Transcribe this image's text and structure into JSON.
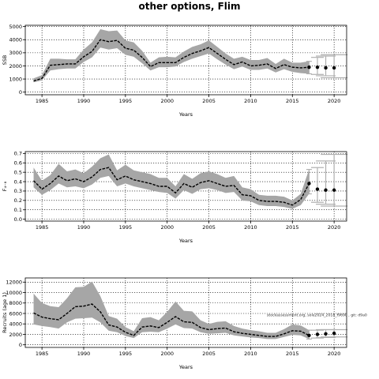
{
  "title": "other options, Flim",
  "watermark": "stockassessment.org, sole2024_2018_f9690 , git: d9a0",
  "colors": {
    "band": "#a6a6a6",
    "line": "#000000",
    "grid": "#000000",
    "forecast": "#b0b0b0"
  },
  "chart_data": [
    {
      "type": "line",
      "ylabel": "SSB",
      "xlabel": "Years",
      "xlim": [
        1983,
        2021.5
      ],
      "ylim": [
        -200,
        5100
      ],
      "xticks": [
        1985,
        1990,
        1995,
        2000,
        2005,
        2010,
        2015,
        2020
      ],
      "yticks": [
        0,
        1000,
        2000,
        3000,
        4000,
        5000
      ],
      "grid": true,
      "series": [
        {
          "x": [
            1984,
            1985,
            1986,
            1987,
            1988,
            1989,
            1990,
            1991,
            1992,
            1993,
            1994,
            1995,
            1996,
            1997,
            1998,
            1999,
            2000,
            2001,
            2002,
            2003,
            2004,
            2005,
            2006,
            2007,
            2008,
            2009,
            2010,
            2011,
            2012,
            2013,
            2014,
            2015,
            2016,
            2017
          ],
          "y": [
            850,
            1050,
            2050,
            2100,
            2150,
            2150,
            2700,
            3100,
            4000,
            3850,
            3950,
            3350,
            3200,
            2650,
            1950,
            2250,
            2250,
            2250,
            2650,
            2950,
            3150,
            3400,
            2950,
            2500,
            2100,
            2300,
            2000,
            2050,
            2150,
            1800,
            2100,
            1900,
            1850,
            1900
          ],
          "lower": [
            750,
            900,
            1650,
            1750,
            1800,
            1800,
            2300,
            2650,
            3400,
            3250,
            3350,
            2850,
            2700,
            2200,
            1650,
            1900,
            1900,
            1950,
            2300,
            2550,
            2750,
            2950,
            2500,
            2100,
            1750,
            1950,
            1700,
            1700,
            1800,
            1500,
            1750,
            1550,
            1450,
            1400
          ],
          "upper": [
            1050,
            1300,
            2550,
            2550,
            2500,
            2500,
            3250,
            3800,
            4800,
            4650,
            4700,
            3950,
            3800,
            3150,
            2250,
            2650,
            2700,
            2650,
            3100,
            3450,
            3650,
            3950,
            3450,
            2950,
            2550,
            2700,
            2450,
            2450,
            2600,
            2150,
            2550,
            2250,
            2250,
            2350
          ]
        },
        {
          "name": "forecast",
          "x": [
            2017,
            2018,
            2019,
            2020
          ],
          "y": [
            1900,
            1900,
            1850,
            1850
          ],
          "lower": [
            1400,
            1350,
            1250,
            1100
          ],
          "upper": [
            2350,
            2650,
            2750,
            2850
          ]
        }
      ]
    },
    {
      "type": "line",
      "ylabel": "F₄₋₈",
      "xlabel": "Years",
      "xlim": [
        1983,
        2021.5
      ],
      "ylim": [
        -0.02,
        0.72
      ],
      "xticks": [
        1985,
        1990,
        1995,
        2000,
        2005,
        2010,
        2015,
        2020
      ],
      "yticks": [
        0.0,
        0.1,
        0.2,
        0.3,
        0.4,
        0.5,
        0.6,
        0.7
      ],
      "grid": true,
      "series": [
        {
          "x": [
            1984,
            1985,
            1986,
            1987,
            1988,
            1989,
            1990,
            1991,
            1992,
            1993,
            1994,
            1995,
            1996,
            1997,
            1998,
            1999,
            2000,
            2001,
            2002,
            2003,
            2004,
            2005,
            2006,
            2007,
            2008,
            2009,
            2010,
            2011,
            2012,
            2013,
            2014,
            2015,
            2016,
            2017
          ],
          "y": [
            0.41,
            0.32,
            0.38,
            0.46,
            0.41,
            0.43,
            0.4,
            0.45,
            0.53,
            0.55,
            0.42,
            0.46,
            0.42,
            0.4,
            0.38,
            0.35,
            0.35,
            0.28,
            0.38,
            0.34,
            0.39,
            0.41,
            0.38,
            0.35,
            0.36,
            0.26,
            0.25,
            0.2,
            0.19,
            0.19,
            0.18,
            0.15,
            0.21,
            0.38
          ],
          "lower": [
            0.34,
            0.26,
            0.31,
            0.38,
            0.34,
            0.35,
            0.33,
            0.37,
            0.44,
            0.46,
            0.35,
            0.38,
            0.35,
            0.33,
            0.31,
            0.29,
            0.28,
            0.22,
            0.31,
            0.27,
            0.32,
            0.33,
            0.31,
            0.28,
            0.29,
            0.2,
            0.19,
            0.15,
            0.14,
            0.14,
            0.13,
            0.11,
            0.15,
            0.27
          ],
          "upper": [
            0.55,
            0.41,
            0.47,
            0.59,
            0.51,
            0.53,
            0.49,
            0.56,
            0.65,
            0.69,
            0.52,
            0.58,
            0.52,
            0.5,
            0.48,
            0.44,
            0.44,
            0.35,
            0.48,
            0.43,
            0.49,
            0.51,
            0.48,
            0.44,
            0.46,
            0.34,
            0.32,
            0.26,
            0.25,
            0.25,
            0.24,
            0.2,
            0.27,
            0.53
          ]
        },
        {
          "name": "forecast",
          "x": [
            2017,
            2018,
            2019,
            2020
          ],
          "y": [
            0.38,
            0.32,
            0.31,
            0.31
          ],
          "lower": [
            0.27,
            0.18,
            0.16,
            0.14
          ],
          "upper": [
            0.53,
            0.55,
            0.62,
            0.69
          ]
        }
      ]
    },
    {
      "type": "line",
      "ylabel": "Recruits (age 1)",
      "xlabel": "Years",
      "xlim": [
        1983,
        2021.5
      ],
      "ylim": [
        -500,
        12800
      ],
      "xticks": [
        1985,
        1990,
        1995,
        2000,
        2005,
        2010,
        2015,
        2020
      ],
      "yticks": [
        0,
        2000,
        4000,
        6000,
        8000,
        10000,
        12000
      ],
      "grid": true,
      "series": [
        {
          "x": [
            1984,
            1985,
            1986,
            1987,
            1988,
            1989,
            1990,
            1991,
            1992,
            1993,
            1994,
            1995,
            1996,
            1997,
            1998,
            1999,
            2000,
            2001,
            2002,
            2003,
            2004,
            2005,
            2006,
            2007,
            2008,
            2009,
            2010,
            2011,
            2012,
            2013,
            2014,
            2015,
            2016,
            2017
          ],
          "y": [
            6100,
            5300,
            5000,
            4800,
            6000,
            7300,
            7400,
            7800,
            6300,
            3800,
            3400,
            2400,
            1800,
            3400,
            3600,
            3300,
            4300,
            5400,
            4400,
            4300,
            3300,
            2900,
            3100,
            3200,
            2500,
            2200,
            2000,
            1800,
            1600,
            1600,
            2100,
            2700,
            2600,
            1800
          ],
          "lower": [
            3900,
            3600,
            3400,
            3100,
            4300,
            5000,
            5100,
            5200,
            4300,
            2700,
            2400,
            1700,
            1300,
            2400,
            2500,
            2400,
            3100,
            3900,
            3200,
            3100,
            2400,
            2100,
            2200,
            2300,
            1800,
            1600,
            1400,
            1300,
            1100,
            1100,
            1500,
            1900,
            1800,
            1100
          ],
          "upper": [
            9800,
            8000,
            7400,
            7200,
            8900,
            11000,
            11100,
            12100,
            9300,
            5500,
            5000,
            3400,
            2600,
            5100,
            5300,
            4700,
            6300,
            8300,
            6500,
            6400,
            4700,
            4000,
            4400,
            4500,
            3600,
            3100,
            2800,
            2600,
            2300,
            2300,
            3000,
            3900,
            3700,
            2800
          ]
        },
        {
          "name": "forecast",
          "x": [
            2017,
            2018,
            2019,
            2020
          ],
          "y": [
            1800,
            2000,
            2100,
            2200
          ],
          "lower": [
            1100,
            1300,
            1400,
            1500
          ],
          "upper": [
            2800,
            2800,
            2900,
            2900
          ]
        }
      ]
    }
  ]
}
